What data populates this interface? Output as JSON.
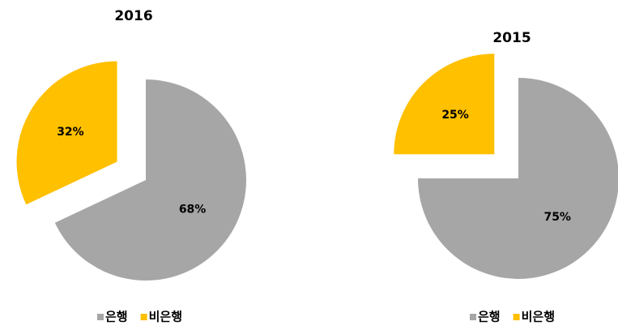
{
  "chart_data": [
    {
      "type": "pie",
      "title": "2016",
      "categories": [
        "은행",
        "비은행"
      ],
      "values": [
        68,
        32
      ],
      "value_labels": [
        "68%",
        "32%"
      ],
      "colors": [
        "#a6a6a6",
        "#ffc000"
      ]
    },
    {
      "type": "pie",
      "title": "2015",
      "categories": [
        "은행",
        "비은행"
      ],
      "values": [
        75,
        25
      ],
      "value_labels": [
        "75%",
        "25%"
      ],
      "colors": [
        "#a6a6a6",
        "#ffc000"
      ]
    }
  ]
}
